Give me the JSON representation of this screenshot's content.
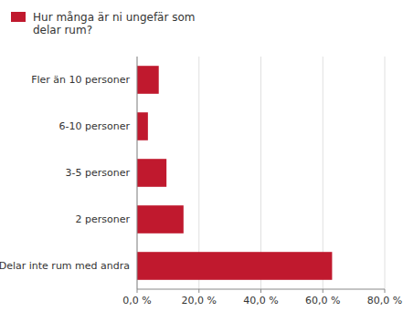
{
  "chart_data": {
    "type": "bar",
    "orientation": "horizontal",
    "categories": [
      "Delar inte rum med andra",
      "2 personer",
      "3-5 personer",
      "6-10 personer",
      "Fler än 10 personer"
    ],
    "series": [
      {
        "name": "Hur många är ni ungefär som\ndelar rum?",
        "color": "#c0192e",
        "values": [
          63.0,
          15.0,
          9.5,
          3.5,
          7.0
        ]
      }
    ],
    "xlim": [
      0,
      80
    ],
    "xticks": [
      {
        "value": 0,
        "label": "0,0 %"
      },
      {
        "value": 20,
        "label": "20,0 %"
      },
      {
        "value": 40,
        "label": "40,0 %"
      },
      {
        "value": 60,
        "label": "60,0 %"
      },
      {
        "value": 80,
        "label": "80,0 %"
      }
    ],
    "grid": true,
    "legend": "upper left"
  }
}
